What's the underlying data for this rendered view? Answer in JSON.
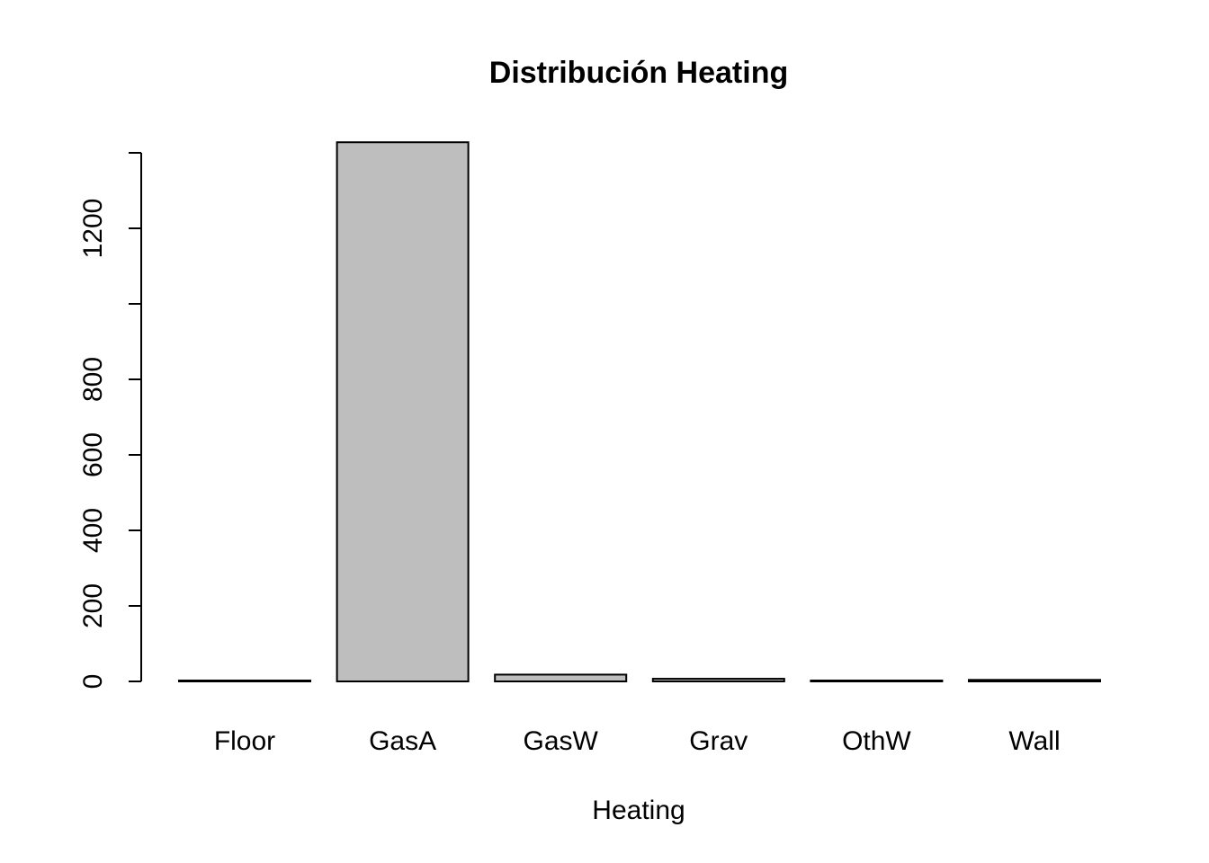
{
  "chart_data": {
    "type": "bar",
    "title": "Distribución Heating",
    "xlabel": "Heating",
    "ylabel": "",
    "categories": [
      "Floor",
      "GasA",
      "GasW",
      "Grav",
      "OthW",
      "Wall"
    ],
    "values": [
      1,
      1428,
      18,
      7,
      2,
      4
    ],
    "ylim": [
      0,
      1400
    ],
    "yticks": [
      0,
      200,
      400,
      600,
      800,
      1000,
      1200,
      1400
    ],
    "ytick_labels": [
      "0",
      "200",
      "400",
      "600",
      "800",
      "",
      "1200",
      ""
    ],
    "bar_fill": "#bebebe",
    "bar_stroke": "#000000",
    "grid": false,
    "legend": "none"
  }
}
